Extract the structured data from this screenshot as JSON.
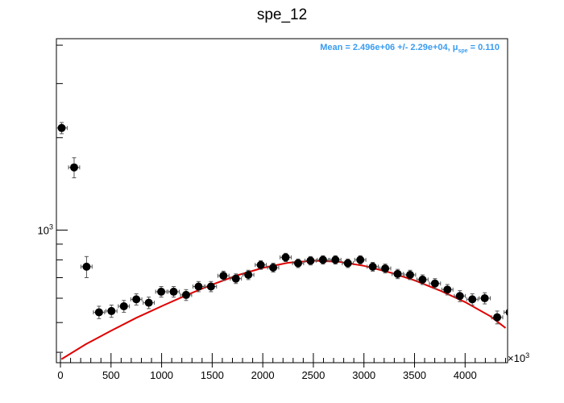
{
  "chart_data": {
    "type": "scatter",
    "title": "spe_12",
    "xlabel": "",
    "ylabel": "",
    "x_multiplier_label": "×10",
    "x_multiplier_exp": "3",
    "y_scale": "log",
    "xlim": [
      -40,
      4420
    ],
    "ylim": [
      370,
      4200
    ],
    "x_ticks": [
      0,
      500,
      1000,
      1500,
      2000,
      2500,
      3000,
      3500,
      4000
    ],
    "x_tick_labels": [
      "0",
      "500",
      "1000",
      "1500",
      "2000",
      "2500",
      "3000",
      "3500",
      "4000"
    ],
    "y_major_ticks": [
      1000
    ],
    "y_tick_base": "10",
    "y_tick_exp": "3",
    "y_minor_ticks": [
      400,
      500,
      600,
      700,
      800,
      900,
      2000,
      3000,
      4000
    ],
    "grid": false,
    "annotation": {
      "prefix": "Mean = 2.496e+06 +/- 2.29e+04, ",
      "mu": "μ",
      "mu_sub": "spe",
      "suffix": " = 0.110",
      "color": "#3a9cf0"
    },
    "series": [
      {
        "marker_color": "#000000",
        "x_err": 55,
        "points": [
          {
            "x": 12,
            "y": 2150,
            "err": 90
          },
          {
            "x": 135,
            "y": 1600,
            "err": 120
          },
          {
            "x": 258,
            "y": 760,
            "err": 60
          },
          {
            "x": 381,
            "y": 540,
            "err": 25
          },
          {
            "x": 504,
            "y": 545,
            "err": 25
          },
          {
            "x": 627,
            "y": 565,
            "err": 25
          },
          {
            "x": 750,
            "y": 595,
            "err": 25
          },
          {
            "x": 873,
            "y": 580,
            "err": 25
          },
          {
            "x": 996,
            "y": 630,
            "err": 25
          },
          {
            "x": 1119,
            "y": 630,
            "err": 25
          },
          {
            "x": 1242,
            "y": 615,
            "err": 25
          },
          {
            "x": 1365,
            "y": 655,
            "err": 25
          },
          {
            "x": 1488,
            "y": 655,
            "err": 25
          },
          {
            "x": 1611,
            "y": 710,
            "err": 25
          },
          {
            "x": 1734,
            "y": 695,
            "err": 25
          },
          {
            "x": 1857,
            "y": 715,
            "err": 25
          },
          {
            "x": 1980,
            "y": 770,
            "err": 25
          },
          {
            "x": 2103,
            "y": 755,
            "err": 25
          },
          {
            "x": 2226,
            "y": 815,
            "err": 25
          },
          {
            "x": 2349,
            "y": 780,
            "err": 25
          },
          {
            "x": 2472,
            "y": 795,
            "err": 25
          },
          {
            "x": 2595,
            "y": 800,
            "err": 25
          },
          {
            "x": 2718,
            "y": 800,
            "err": 25
          },
          {
            "x": 2841,
            "y": 780,
            "err": 25
          },
          {
            "x": 2964,
            "y": 800,
            "err": 25
          },
          {
            "x": 3087,
            "y": 760,
            "err": 25
          },
          {
            "x": 3210,
            "y": 750,
            "err": 25
          },
          {
            "x": 3333,
            "y": 720,
            "err": 25
          },
          {
            "x": 3456,
            "y": 715,
            "err": 25
          },
          {
            "x": 3579,
            "y": 690,
            "err": 25
          },
          {
            "x": 3702,
            "y": 670,
            "err": 25
          },
          {
            "x": 3825,
            "y": 640,
            "err": 25
          },
          {
            "x": 3948,
            "y": 610,
            "err": 25
          },
          {
            "x": 4071,
            "y": 595,
            "err": 25
          },
          {
            "x": 4194,
            "y": 600,
            "err": 25
          },
          {
            "x": 4317,
            "y": 520,
            "err": 25
          },
          {
            "x": 4440,
            "y": 540,
            "err": 20
          }
        ]
      },
      {
        "type": "line",
        "line_color": "#e00000",
        "x": [
          10,
          250,
          500,
          750,
          1000,
          1250,
          1500,
          1750,
          2000,
          2250,
          2500,
          2750,
          3000,
          3250,
          3500,
          3750,
          4000,
          4250,
          4400
        ],
        "values": [
          380,
          425,
          470,
          518,
          565,
          615,
          665,
          713,
          753,
          783,
          795,
          789,
          765,
          729,
          686,
          636,
          583,
          524,
          480
        ]
      }
    ]
  }
}
